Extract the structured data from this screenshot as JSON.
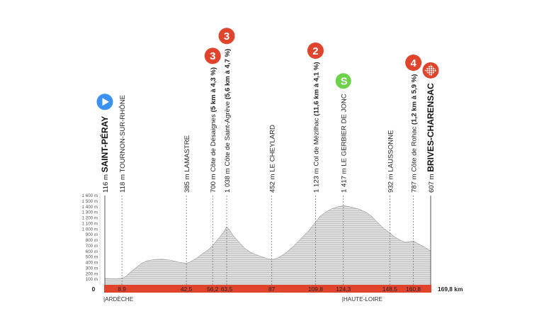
{
  "chart_data": {
    "type": "area",
    "title": "",
    "xlabel": "",
    "ylabel": "",
    "total_distance_label": "169,8 km",
    "x_zero_label": "0",
    "xlim": [
      0,
      169.8
    ],
    "ylim": [
      0,
      1600
    ],
    "y_ticks": [
      {
        "value": 100,
        "label": "100 m"
      },
      {
        "value": 200,
        "label": "200 m"
      },
      {
        "value": 300,
        "label": "300 m"
      },
      {
        "value": 400,
        "label": "400 m"
      },
      {
        "value": 500,
        "label": "500 m"
      },
      {
        "value": 600,
        "label": "600 m"
      },
      {
        "value": 700,
        "label": "700 m"
      },
      {
        "value": 800,
        "label": "800 m"
      },
      {
        "value": 900,
        "label": "900 m"
      },
      {
        "value": 1000,
        "label": "1 000 m"
      },
      {
        "value": 1100,
        "label": "1 100 m"
      },
      {
        "value": 1200,
        "label": "1 200 m"
      },
      {
        "value": 1300,
        "label": "1 300 m"
      },
      {
        "value": 1400,
        "label": "1 400 m"
      },
      {
        "value": 1500,
        "label": "1 500 m"
      },
      {
        "value": 1600,
        "label": "1 600 m"
      }
    ],
    "km_ticks": [
      {
        "km": 8.9,
        "label": "8,9"
      },
      {
        "km": 42.5,
        "label": "42,5"
      },
      {
        "km": 56.2,
        "label": "56,2"
      },
      {
        "km": 63.5,
        "label": "63,5"
      },
      {
        "km": 87,
        "label": "87"
      },
      {
        "km": 109.8,
        "label": "109,8"
      },
      {
        "km": 124.3,
        "label": "124,3"
      },
      {
        "km": 148.5,
        "label": "148,5"
      },
      {
        "km": 160.8,
        "label": "160,8"
      }
    ],
    "profile": {
      "x": [
        0,
        3,
        6,
        8.9,
        11,
        13,
        16,
        19,
        22,
        26,
        30,
        34,
        38,
        42.5,
        45,
        48,
        51,
        54,
        56.2,
        58,
        60,
        62,
        63.5,
        65,
        67,
        70,
        73,
        76,
        79,
        82,
        85,
        87,
        90,
        94,
        98,
        102,
        106,
        109.8,
        112,
        115,
        118,
        121,
        124.3,
        127,
        130,
        133,
        136,
        139,
        142,
        145,
        148.5,
        151,
        154,
        157,
        160.8,
        163,
        166,
        169.8
      ],
      "y": [
        116,
        112,
        110,
        118,
        150,
        215,
        300,
        385,
        430,
        455,
        460,
        445,
        410,
        385,
        420,
        480,
        560,
        630,
        700,
        780,
        860,
        950,
        1038,
        980,
        880,
        760,
        650,
        580,
        540,
        500,
        470,
        452,
        480,
        560,
        680,
        820,
        960,
        1123,
        1220,
        1300,
        1360,
        1395,
        1417,
        1405,
        1380,
        1350,
        1300,
        1230,
        1120,
        1020,
        932,
        860,
        800,
        760,
        787,
        740,
        690,
        607
      ]
    },
    "waypoints": [
      {
        "km": 0,
        "alt_label": "116 m",
        "name": "SAINT-PÉRAY",
        "major": true
      },
      {
        "km": 8.9,
        "alt_label": "118 m",
        "name": "TOURNON-SUR-RHÔNE"
      },
      {
        "km": 42.5,
        "alt_label": "385 m",
        "name": "LAMASTRE"
      },
      {
        "km": 56.2,
        "alt_label": "700 m",
        "name": "Côte de Désaignes",
        "detail": "(5 km à 4,3 %)",
        "category": "3"
      },
      {
        "km": 63.5,
        "alt_label": "1 038 m",
        "name": "Côte de Saint-Agrève",
        "detail": "(5,6 km à 4,7 %)",
        "category": "3"
      },
      {
        "km": 87,
        "alt_label": "452 m",
        "name": "LE CHEYLARD"
      },
      {
        "km": 109.8,
        "alt_label": "1 123 m",
        "name": "Col de Mézilhac",
        "detail": "(11,6 km à 4,1 %)",
        "category": "2"
      },
      {
        "km": 124.3,
        "alt_label": "1 417 m",
        "name": "LE GERBIER DE JONC",
        "sprint": true
      },
      {
        "km": 148.5,
        "alt_label": "932 m",
        "name": "LAUSSONNE"
      },
      {
        "km": 160.8,
        "alt_label": "787 m",
        "name": "Côte de Rohac",
        "detail": "(1,2 km à 5,9 %)",
        "category": "4"
      },
      {
        "km": 169.8,
        "alt_label": "607 m",
        "name": "BRIVES-CHARENSAC",
        "major": true,
        "finish": true
      }
    ],
    "regions": [
      {
        "km": 0,
        "label": "|ARDÈCHE"
      },
      {
        "km": 124.3,
        "label": "|HAUTE-LOIRE"
      }
    ],
    "sprint_symbol": "S",
    "colors": {
      "profile_fill": "#dcdcdc",
      "profile_stripes": "#bdbdbd",
      "axis_bar": "#e0442c",
      "category_circle": "#e0442c",
      "sprint_circle": "#6bd24a",
      "start_marker": "#3b91f0"
    },
    "icons": {
      "start": "play-triangle-icon",
      "finish": "checkered-flag-icon",
      "sprint": "sprint-icon"
    }
  }
}
